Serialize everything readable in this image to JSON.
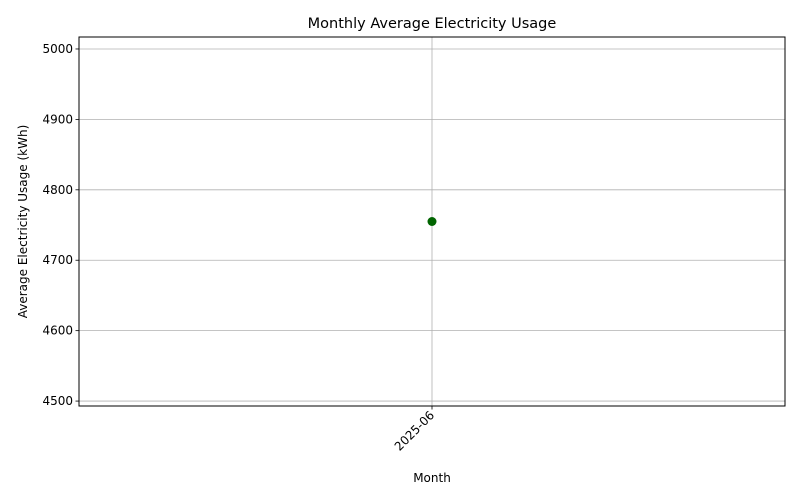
{
  "chart_data": {
    "type": "line",
    "title": "Monthly Average Electricity Usage",
    "xlabel": "Month",
    "ylabel": "Average Electricity Usage (kWh)",
    "categories": [
      "2025-06"
    ],
    "series": [
      {
        "values": [
          4755
        ],
        "color": "#006400",
        "marker": "circle"
      }
    ],
    "ylim": [
      4493,
      5017
    ],
    "yticks": [
      4500,
      4600,
      4700,
      4800,
      4900,
      5000
    ],
    "grid": true,
    "legend": "none"
  }
}
